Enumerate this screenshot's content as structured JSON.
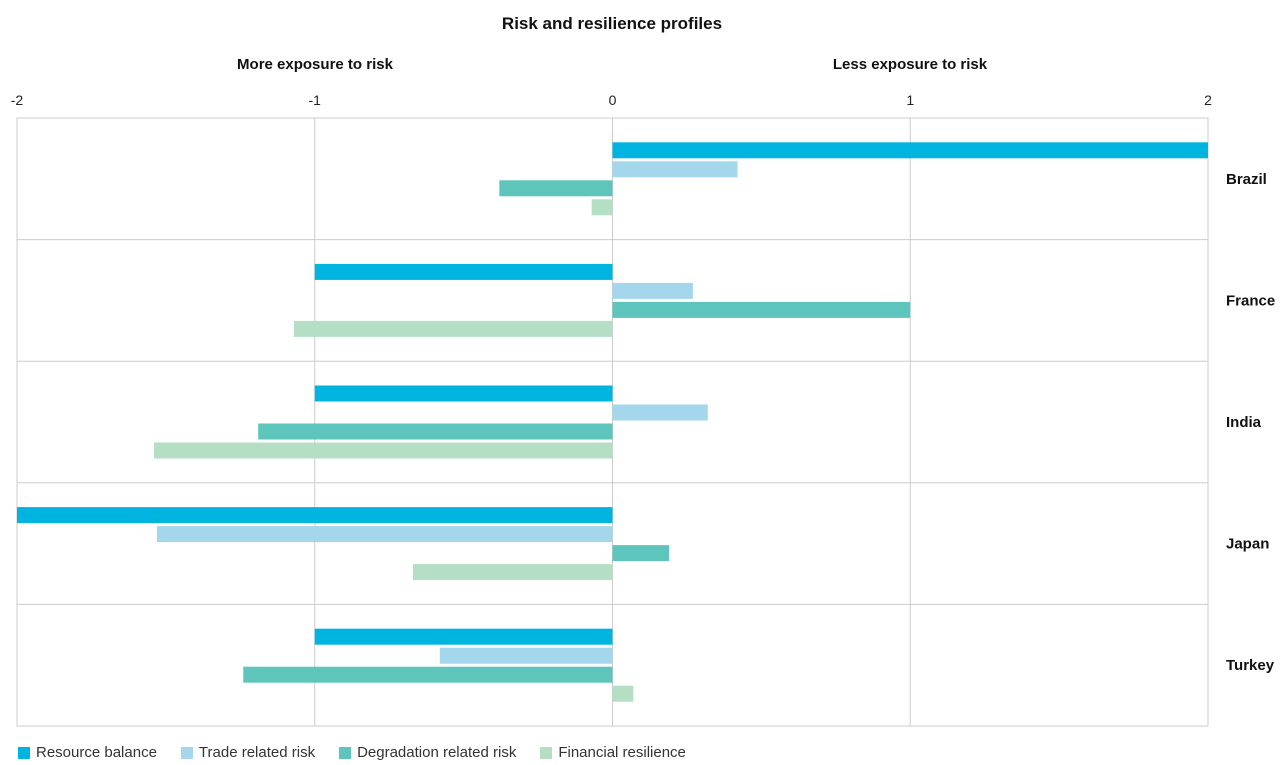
{
  "chart_data": {
    "type": "bar",
    "orientation": "horizontal",
    "title": "Risk and resilience profiles",
    "left_label": "More exposure to risk",
    "right_label": "Less exposure to risk",
    "xlim": [
      -2,
      2
    ],
    "ticks": [
      "-2",
      "-1",
      "0",
      "1",
      "2"
    ],
    "categories": [
      "Brazil",
      "France",
      "India",
      "Japan",
      "Turkey"
    ],
    "series": [
      {
        "name": "Resource balance",
        "color": "#00b4e0",
        "values": [
          2.0,
          -1.0,
          -1.0,
          -2.0,
          -1.0
        ]
      },
      {
        "name": "Trade related risk",
        "color": "#a4d6ec",
        "values": [
          0.42,
          0.27,
          0.32,
          -1.53,
          -0.58
        ]
      },
      {
        "name": "Degradation related risk",
        "color": "#5ec5bc",
        "values": [
          -0.38,
          1.0,
          -1.19,
          0.19,
          -1.24
        ]
      },
      {
        "name": "Financial resilience",
        "color": "#b4dfc4",
        "values": [
          -0.07,
          -1.07,
          -1.54,
          -0.67,
          0.07
        ]
      }
    ],
    "grid": true,
    "legend_position": "bottom-left"
  }
}
